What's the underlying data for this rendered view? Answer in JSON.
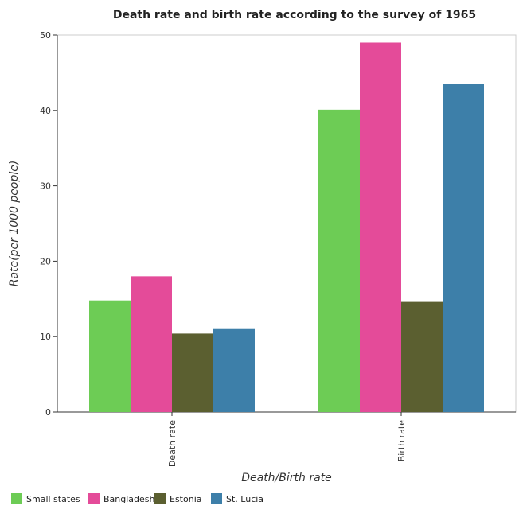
{
  "chart_data": {
    "type": "bar",
    "title": "Death rate and birth rate according to the survey of 1965",
    "xlabel": "Death/Birth rate",
    "ylabel": "Rate(per 1000 people)",
    "categories": [
      "Death rate",
      "Birth rate"
    ],
    "ylim": [
      0,
      50
    ],
    "yticks": [
      0,
      10,
      20,
      30,
      40,
      50
    ],
    "grid": false,
    "legend_position": "bottom-left",
    "series": [
      {
        "name": "Small states",
        "color": "#6dcc55",
        "values": [
          14.8,
          40.1
        ]
      },
      {
        "name": "Bangladesh",
        "color": "#e44b99",
        "values": [
          18.0,
          49.0
        ]
      },
      {
        "name": "Estonia",
        "color": "#5b5f30",
        "values": [
          10.4,
          14.6
        ]
      },
      {
        "name": "St. Lucia",
        "color": "#3d7fa9",
        "values": [
          11.0,
          43.5
        ]
      }
    ]
  }
}
